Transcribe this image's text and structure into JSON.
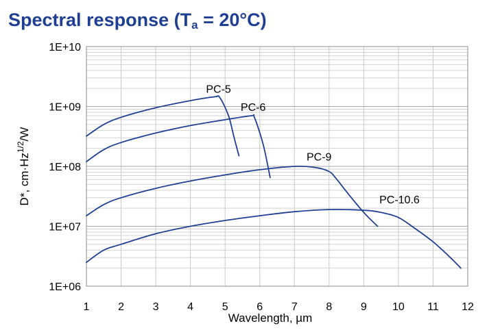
{
  "title": {
    "prefix": "Spectral response (T",
    "subscript": "a",
    "suffix": " = 20°C)"
  },
  "chart_data": {
    "type": "line",
    "title": "Spectral response (Ta = 20°C)",
    "xlabel": "Wavelength, µm",
    "ylabel": {
      "base": "D*, cm·Hz",
      "superscript": "1/2",
      "tail": "/W"
    },
    "xscale": "linear",
    "yscale": "log",
    "xlim": [
      1,
      12
    ],
    "ylim": [
      1000000,
      10000000000
    ],
    "xticks": [
      1,
      2,
      3,
      4,
      5,
      6,
      7,
      8,
      9,
      10,
      11,
      12
    ],
    "xtick_labels": [
      "1",
      "2",
      "3",
      "4",
      "5",
      "6",
      "7",
      "8",
      "9",
      "10",
      "11",
      "12"
    ],
    "yticks": [
      1000000,
      10000000,
      100000000,
      1000000000,
      10000000000
    ],
    "ytick_labels": [
      "1E+06",
      "1E+07",
      "1E+08",
      "1E+09",
      "1E+10"
    ],
    "grid": true,
    "line_color": "#1f3f93",
    "series": [
      {
        "name": "PC-5",
        "x": [
          1.0,
          1.5,
          2.0,
          3.0,
          4.0,
          4.7,
          4.85,
          5.1,
          5.25,
          5.4
        ],
        "y": [
          320000000,
          500000000,
          660000000,
          950000000,
          1250000000,
          1450000000,
          1400000000,
          700000000,
          320000000,
          150000000
        ]
      },
      {
        "name": "PC-6",
        "x": [
          1.0,
          1.5,
          2.0,
          3.0,
          4.0,
          5.0,
          5.75,
          5.85,
          6.1,
          6.3
        ],
        "y": [
          120000000,
          190000000,
          250000000,
          360000000,
          480000000,
          600000000,
          700000000,
          650000000,
          230000000,
          65000000
        ]
      },
      {
        "name": "PC-9",
        "x": [
          1.0,
          1.5,
          2.0,
          3.0,
          4.0,
          5.0,
          6.0,
          7.0,
          7.6,
          8.0,
          8.2,
          8.5,
          9.0,
          9.4
        ],
        "y": [
          15000000,
          23000000,
          30000000,
          43000000,
          57000000,
          72000000,
          88000000,
          100000000,
          96000000,
          82000000,
          63000000,
          38000000,
          17000000,
          10000000
        ]
      },
      {
        "name": "PC-10.6",
        "x": [
          1.0,
          1.5,
          2.0,
          3.0,
          4.0,
          5.0,
          6.0,
          7.0,
          8.0,
          9.0,
          9.5,
          10.0,
          10.5,
          11.0,
          11.5,
          11.8
        ],
        "y": [
          2500000,
          4000000,
          5000000,
          7500000,
          10000000,
          12500000,
          15000000,
          17500000,
          19000000,
          18500000,
          17000000,
          14000000,
          9000000,
          5500000,
          3000000,
          2000000
        ]
      }
    ],
    "annotations": [
      {
        "text": "PC-5",
        "x": 4.45,
        "y": 1700000000
      },
      {
        "text": "PC-6",
        "x": 5.45,
        "y": 840000000
      },
      {
        "text": "PC-9",
        "x": 7.35,
        "y": 125000000
      },
      {
        "text": "PC-10.6",
        "x": 9.45,
        "y": 24000000
      }
    ]
  }
}
